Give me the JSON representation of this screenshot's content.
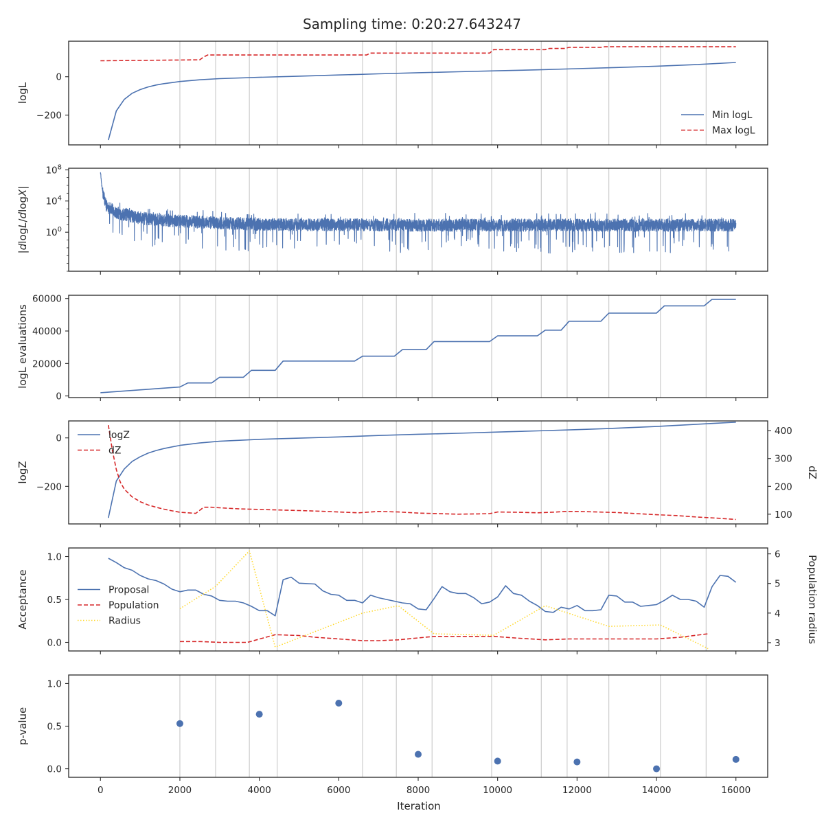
{
  "figure": {
    "title": "Sampling time: 0:20:27.643247",
    "xlabel": "Iteration"
  },
  "colors": {
    "blue": "#4c72b0",
    "red": "#d62728",
    "gold": "#ffd92f",
    "vline": "#cccccc",
    "axes": "#262626"
  },
  "chart_data": [
    {
      "id": "logl",
      "type": "line",
      "ylabel": "logL",
      "xlim": [
        -800,
        16800
      ],
      "ylim": [
        -355,
        185
      ],
      "yticks": [
        {
          "v": 0,
          "label": "0"
        },
        {
          "v": -200,
          "label": "−200"
        }
      ],
      "legend": {
        "placement": "lower-right",
        "entries": [
          "Min logL",
          "Max logL"
        ]
      },
      "series": [
        {
          "name": "Min logL",
          "style": "solid",
          "color": "blue",
          "x": [
            200,
            400,
            600,
            800,
            1000,
            1200,
            1400,
            1600,
            2000,
            2500,
            3000,
            4000,
            5000,
            6000,
            7000,
            8000,
            9000,
            10000,
            11000,
            12000,
            13000,
            14000,
            15000,
            16000
          ],
          "y": [
            -330,
            -178,
            -118,
            -86,
            -67,
            -53,
            -43,
            -36,
            -25,
            -16,
            -10,
            -3,
            3,
            9,
            15,
            21,
            26,
            31,
            36,
            42,
            48,
            55,
            63,
            74
          ]
        },
        {
          "name": "Max logL",
          "style": "dashed",
          "color": "red",
          "x": [
            0,
            2500,
            2600,
            2700,
            6700,
            6800,
            9800,
            9900,
            11200,
            11300,
            11700,
            11800,
            12600,
            12700,
            16000
          ],
          "y": [
            83,
            88,
            103,
            113,
            113,
            123,
            123,
            141,
            141,
            147,
            147,
            153,
            153,
            156,
            156
          ]
        }
      ]
    },
    {
      "id": "dlogl",
      "type": "line",
      "ylabel": "|dlogL/dlogX|",
      "yscale": "log",
      "xlim": [
        -800,
        16800
      ],
      "ylim": [
        -5,
        8.2
      ],
      "yticks": [
        {
          "v": 8,
          "label": "10^8"
        },
        {
          "v": 4,
          "label": "10^4"
        },
        {
          "v": 0,
          "label": "10^0"
        }
      ],
      "series": [
        {
          "name": "",
          "style": "solid",
          "color": "blue",
          "noisy": true,
          "x": [
            0,
            60,
            150,
            400,
            1000,
            2000,
            4000,
            8000,
            12000,
            16000
          ],
          "y": [
            7.6,
            5.0,
            3.4,
            2.5,
            1.8,
            1.4,
            1.0,
            0.9,
            0.9,
            0.9
          ]
        }
      ]
    },
    {
      "id": "evals",
      "type": "line",
      "ylabel": "logL evaluations",
      "xlim": [
        -800,
        16800
      ],
      "ylim": [
        -1000,
        62000
      ],
      "yticks": [
        {
          "v": 0,
          "label": "0"
        },
        {
          "v": 20000,
          "label": "20000"
        },
        {
          "v": 40000,
          "label": "40000"
        },
        {
          "v": 60000,
          "label": "60000"
        }
      ],
      "series": [
        {
          "name": "",
          "style": "solid",
          "color": "blue",
          "x": [
            0,
            2000,
            2200,
            2800,
            3000,
            3600,
            3800,
            4400,
            4600,
            6400,
            6600,
            7400,
            7600,
            8200,
            8400,
            9800,
            10000,
            11000,
            11200,
            11600,
            11800,
            12600,
            12800,
            14000,
            14200,
            15200,
            15400,
            16000
          ],
          "y": [
            2000,
            5500,
            8000,
            8000,
            11500,
            11500,
            15800,
            15800,
            21500,
            21500,
            24500,
            24500,
            28500,
            28500,
            33500,
            33500,
            37000,
            37000,
            40500,
            40500,
            46000,
            46000,
            51000,
            51000,
            55500,
            55500,
            59500,
            59500
          ]
        }
      ]
    },
    {
      "id": "logz",
      "type": "line",
      "ylabel": "logZ",
      "ylabel_right": "dZ",
      "xlim": [
        -800,
        16800
      ],
      "ylim": [
        -355,
        70
      ],
      "ylim_right": [
        65,
        435
      ],
      "yticks": [
        {
          "v": 0,
          "label": "0"
        },
        {
          "v": -200,
          "label": "−200"
        }
      ],
      "yticks_right": [
        {
          "v": 100,
          "label": "100"
        },
        {
          "v": 200,
          "label": "200"
        },
        {
          "v": 300,
          "label": "300"
        },
        {
          "v": 400,
          "label": "400"
        }
      ],
      "legend": {
        "placement": "upper-left",
        "entries": [
          "logZ",
          "dZ"
        ]
      },
      "series": [
        {
          "name": "logZ",
          "style": "solid",
          "color": "blue",
          "axis": "left",
          "x": [
            200,
            400,
            600,
            800,
            1000,
            1200,
            1400,
            1600,
            2000,
            2500,
            3000,
            4000,
            5000,
            6000,
            7000,
            8000,
            9000,
            10000,
            11000,
            12000,
            13000,
            14000,
            15000,
            16000
          ],
          "y": [
            -330,
            -178,
            -128,
            -97,
            -78,
            -63,
            -52,
            -44,
            -31,
            -21,
            -14,
            -6,
            -1,
            4,
            10,
            15,
            19,
            24,
            29,
            34,
            40,
            47,
            56,
            65
          ]
        },
        {
          "name": "dZ",
          "style": "dashed",
          "color": "red",
          "axis": "right",
          "x": [
            200,
            300,
            400,
            500,
            600,
            800,
            1000,
            1200,
            1400,
            1600,
            1800,
            2000,
            2200,
            2400,
            2600,
            2800,
            3000,
            3500,
            4000,
            4500,
            5000,
            5500,
            6000,
            6500,
            7000,
            7500,
            8000,
            8500,
            9000,
            9500,
            9800,
            10000,
            10500,
            11000,
            11500,
            11700,
            12000,
            12500,
            13000,
            13500,
            14000,
            14500,
            15000,
            15500,
            16000
          ],
          "y": [
            420,
            330,
            260,
            215,
            190,
            162,
            145,
            133,
            125,
            118,
            112,
            107,
            105,
            103,
            125,
            125,
            123,
            119,
            117,
            115,
            113,
            111,
            108,
            105,
            110,
            108,
            104,
            102,
            100,
            101,
            102,
            108,
            107,
            105,
            108,
            110,
            110,
            108,
            106,
            102,
            98,
            95,
            90,
            86,
            81
          ]
        }
      ]
    },
    {
      "id": "accept",
      "type": "line",
      "ylabel": "Acceptance",
      "ylabel_right": "Population radius",
      "xlim": [
        -800,
        16800
      ],
      "ylim": [
        -0.1,
        1.1
      ],
      "ylim_right": [
        2.72,
        6.2
      ],
      "yticks": [
        {
          "v": 0,
          "label": "0.0"
        },
        {
          "v": 0.5,
          "label": "0.5"
        },
        {
          "v": 1,
          "label": "1.0"
        }
      ],
      "yticks_right": [
        {
          "v": 3,
          "label": "3"
        },
        {
          "v": 4,
          "label": "4"
        },
        {
          "v": 5,
          "label": "5"
        },
        {
          "v": 6,
          "label": "6"
        }
      ],
      "legend": {
        "placement": "center-left",
        "entries": [
          "Proposal",
          "Population",
          "Radius"
        ]
      },
      "series": [
        {
          "name": "Proposal",
          "style": "solid",
          "color": "blue",
          "axis": "left",
          "x": [
            200,
            400,
            600,
            800,
            1000,
            1200,
            1400,
            1600,
            1800,
            2000,
            2200,
            2400,
            2600,
            2800,
            3000,
            3200,
            3400,
            3600,
            3800,
            4000,
            4200,
            4400,
            4600,
            4800,
            5000,
            5400,
            5600,
            5800,
            6000,
            6200,
            6400,
            6600,
            6800,
            7000,
            7400,
            7600,
            7800,
            8000,
            8200,
            8400,
            8600,
            8800,
            9000,
            9200,
            9400,
            9600,
            9800,
            10000,
            10200,
            10400,
            10600,
            10800,
            11000,
            11200,
            11400,
            11600,
            11800,
            12000,
            12200,
            12400,
            12600,
            12800,
            13000,
            13200,
            13400,
            13600,
            13800,
            14000,
            14200,
            14400,
            14600,
            14800,
            15000,
            15200,
            15400,
            15600,
            15800,
            16000
          ],
          "y": [
            0.98,
            0.93,
            0.87,
            0.84,
            0.78,
            0.74,
            0.72,
            0.68,
            0.62,
            0.59,
            0.61,
            0.61,
            0.56,
            0.54,
            0.49,
            0.48,
            0.48,
            0.46,
            0.42,
            0.37,
            0.37,
            0.31,
            0.73,
            0.76,
            0.69,
            0.68,
            0.6,
            0.56,
            0.55,
            0.49,
            0.49,
            0.46,
            0.55,
            0.52,
            0.48,
            0.46,
            0.45,
            0.39,
            0.38,
            0.51,
            0.65,
            0.59,
            0.57,
            0.57,
            0.52,
            0.45,
            0.47,
            0.53,
            0.66,
            0.57,
            0.55,
            0.48,
            0.43,
            0.36,
            0.35,
            0.41,
            0.39,
            0.43,
            0.37,
            0.37,
            0.38,
            0.55,
            0.54,
            0.47,
            0.47,
            0.42,
            0.43,
            0.44,
            0.49,
            0.55,
            0.5,
            0.5,
            0.48,
            0.41,
            0.65,
            0.78,
            0.77,
            0.7
          ]
        },
        {
          "name": "Population",
          "style": "dashed",
          "color": "red",
          "axis": "left",
          "x": [
            2000,
            2500,
            3000,
            3700,
            4400,
            5000,
            5400,
            6600,
            7000,
            7500,
            8400,
            9000,
            9900,
            10500,
            11200,
            11800,
            12400,
            13000,
            14000,
            14600,
            15300
          ],
          "y": [
            0.01,
            0.01,
            0.0,
            0.0,
            0.09,
            0.08,
            0.06,
            0.02,
            0.02,
            0.03,
            0.07,
            0.07,
            0.07,
            0.05,
            0.03,
            0.04,
            0.04,
            0.04,
            0.04,
            0.06,
            0.1
          ]
        },
        {
          "name": "Radius",
          "style": "dotted",
          "color": "gold",
          "axis": "right",
          "x": [
            2000,
            2900,
            3750,
            4400,
            6600,
            7500,
            8400,
            9900,
            11200,
            12800,
            14100,
            15300
          ],
          "y": [
            4.15,
            4.9,
            6.1,
            2.85,
            4.0,
            4.25,
            3.3,
            3.25,
            4.25,
            3.55,
            3.6,
            2.8
          ]
        }
      ]
    },
    {
      "id": "pvalue",
      "type": "scatter",
      "ylabel": "p-value",
      "xlim": [
        -800,
        16800
      ],
      "ylim": [
        -0.1,
        1.1
      ],
      "yticks": [
        {
          "v": 0,
          "label": "0.0"
        },
        {
          "v": 0.5,
          "label": "0.5"
        },
        {
          "v": 1,
          "label": "1.0"
        }
      ],
      "xticks": [
        {
          "v": 0,
          "label": "0"
        },
        {
          "v": 2000,
          "label": "2000"
        },
        {
          "v": 4000,
          "label": "4000"
        },
        {
          "v": 6000,
          "label": "6000"
        },
        {
          "v": 8000,
          "label": "8000"
        },
        {
          "v": 10000,
          "label": "10000"
        },
        {
          "v": 12000,
          "label": "12000"
        },
        {
          "v": 14000,
          "label": "14000"
        },
        {
          "v": 16000,
          "label": "16000"
        }
      ],
      "series": [
        {
          "name": "",
          "color": "blue",
          "x": [
            2000,
            4000,
            6000,
            8000,
            10000,
            12000,
            14000,
            16000
          ],
          "y": [
            0.53,
            0.64,
            0.77,
            0.17,
            0.09,
            0.08,
            0.0,
            0.11
          ]
        }
      ]
    }
  ],
  "vlines": [
    2000,
    2900,
    3750,
    4450,
    6600,
    7450,
    8350,
    9850,
    11100,
    11750,
    12800,
    14100,
    15250
  ],
  "xticks": [
    0,
    2000,
    4000,
    6000,
    8000,
    10000,
    12000,
    14000,
    16000
  ]
}
